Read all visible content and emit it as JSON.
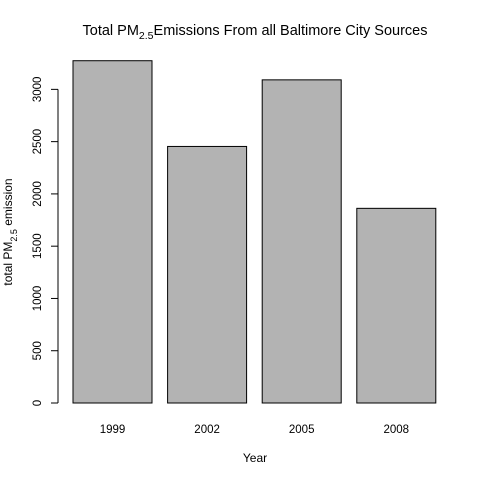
{
  "chart_data": {
    "type": "bar",
    "title": {
      "prefix": "Total PM",
      "subscript": "2.5",
      "suffix": "Emissions From all Baltimore City Sources"
    },
    "xlabel": "Year",
    "ylabel": {
      "prefix": "total PM",
      "subscript": "2.5",
      "suffix": " emission"
    },
    "categories": [
      "1999",
      "2002",
      "2005",
      "2008"
    ],
    "values": [
      3274,
      2454,
      3091,
      1862
    ],
    "ylim": [
      0,
      3300
    ],
    "yticks": [
      "0",
      "500",
      "1000",
      "1500",
      "2000",
      "2500",
      "3000"
    ],
    "bar_color": "#b3b3b3",
    "grid": false,
    "legend": "none"
  }
}
